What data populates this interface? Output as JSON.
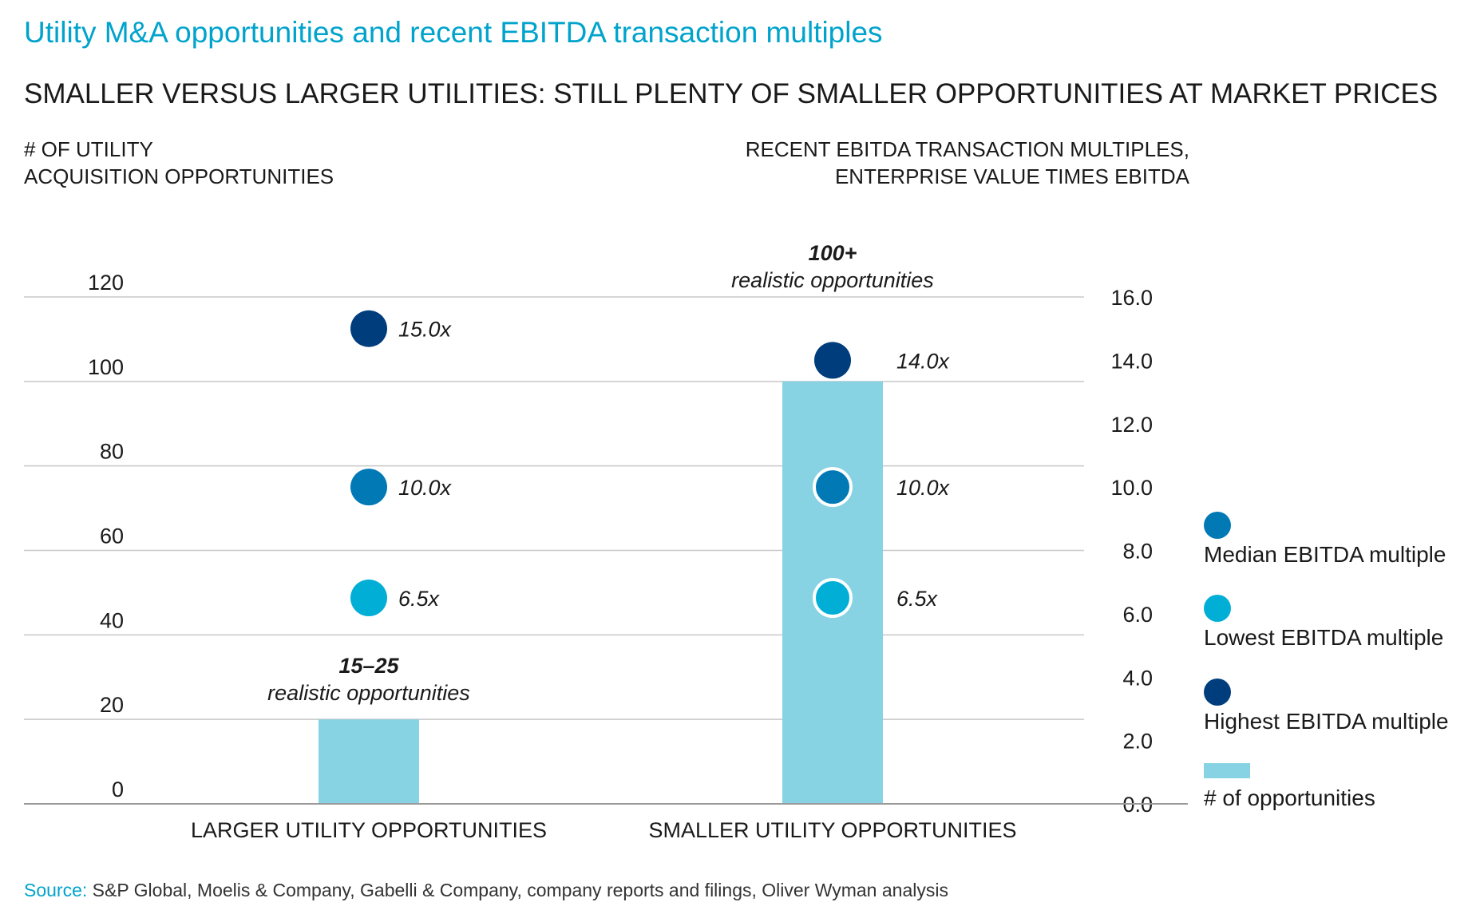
{
  "title": "Utility M&A opportunities and recent EBITDA transaction multiples",
  "subtitle": "SMALLER VERSUS LARGER UTILITIES: STILL PLENTY OF SMALLER OPPORTUNITIES AT MARKET PRICES",
  "source_label": "Source:",
  "source_text": " S&P Global, Moelis & Company, Gabelli & Company, company reports and filings, Oliver Wyman analysis",
  "colors": {
    "title": "#00a3cc",
    "bar": "#87d3e3",
    "median": "#0079b5",
    "lowest": "#00aed6",
    "highest": "#003d7c",
    "grid": "#c8c8c8"
  },
  "chart_data": {
    "type": "bar",
    "title": "",
    "ylabel_left_lines": [
      "# OF UTILITY",
      "ACQUISITION OPPORTUNITIES"
    ],
    "ylabel_right_lines": [
      "RECENT EBITDA TRANSACTION MULTIPLES,",
      "ENTERPRISE VALUE TIMES EBITDA"
    ],
    "categories": [
      "LARGER UTILITY OPPORTUNITIES",
      "SMALLER UTILITY OPPORTUNITIES"
    ],
    "ylim_left": [
      0,
      120
    ],
    "yticks_left": [
      "0",
      "20",
      "40",
      "60",
      "80",
      "100",
      "120"
    ],
    "ylim_right": [
      0,
      16
    ],
    "yticks_right": [
      "0.0",
      "2.0",
      "4.0",
      "6.0",
      "8.0",
      "10.0",
      "12.0",
      "14.0",
      "16.0"
    ],
    "grid": true,
    "legend_position": "right",
    "series": [
      {
        "name": "# of opportunities",
        "kind": "bar",
        "axis": "left",
        "values": [
          20,
          100
        ]
      },
      {
        "name": "Median EBITDA multiple",
        "kind": "dot",
        "axis": "right",
        "values": [
          10.0,
          10.0
        ],
        "labels": [
          "10.0x",
          "10.0x"
        ]
      },
      {
        "name": "Lowest EBITDA multiple",
        "kind": "dot",
        "axis": "right",
        "values": [
          6.5,
          6.5
        ],
        "labels": [
          "6.5x",
          "6.5x"
        ]
      },
      {
        "name": "Highest EBITDA multiple",
        "kind": "dot",
        "axis": "right",
        "values": [
          15.0,
          14.0
        ],
        "labels": [
          "15.0x",
          "14.0x"
        ]
      }
    ],
    "annotations": [
      {
        "bold": "15–25",
        "text": "realistic opportunities"
      },
      {
        "bold": "100+",
        "text": "realistic opportunities"
      }
    ],
    "legend_order": [
      "Median EBITDA multiple",
      "Lowest EBITDA multiple",
      "Highest EBITDA multiple",
      "# of opportunities"
    ]
  }
}
